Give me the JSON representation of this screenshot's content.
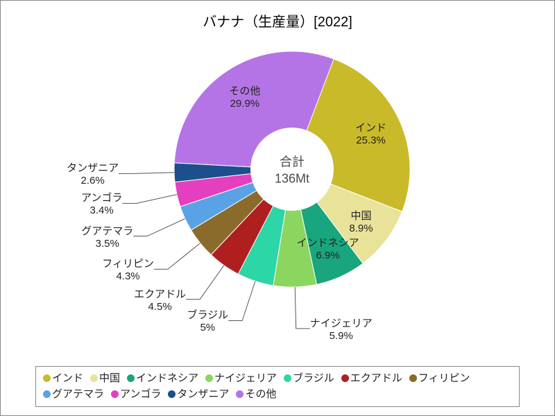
{
  "title": "バナナ（生産量）[2022]",
  "center": {
    "label": "合計",
    "value": "136Mt"
  },
  "chart": {
    "type": "pie",
    "inner_radius_ratio": 0.35,
    "start_angle_deg": -70,
    "direction": "clockwise",
    "background_color": "#ffffff",
    "border_color": "#888888",
    "title_fontsize": 20,
    "label_fontsize": 15,
    "legend_fontsize": 15
  },
  "slices": [
    {
      "name": "インド",
      "pct": 25.3,
      "color": "#c9ba29",
      "label": "インド",
      "pct_text": "25.3%"
    },
    {
      "name": "中国",
      "pct": 8.9,
      "color": "#e9e39a",
      "label": "中国",
      "pct_text": "8.9%"
    },
    {
      "name": "インドネシア",
      "pct": 6.9,
      "color": "#19a57d",
      "label": "インドネシア",
      "pct_text": "6.9%"
    },
    {
      "name": "ナイジェリア",
      "pct": 5.9,
      "color": "#8bd65f",
      "label": "ナイジェリア",
      "pct_text": "5.9%"
    },
    {
      "name": "ブラジル",
      "pct": 5.0,
      "color": "#2cd6a6",
      "label": "ブラジル",
      "pct_text": "5%"
    },
    {
      "name": "エクアドル",
      "pct": 4.5,
      "color": "#b01f1f",
      "label": "エクアドル",
      "pct_text": "4.5%"
    },
    {
      "name": "フィリピン",
      "pct": 4.3,
      "color": "#8a6b2b",
      "label": "フィリピン",
      "pct_text": "4.3%"
    },
    {
      "name": "グアテマラ",
      "pct": 3.5,
      "color": "#5aa2e6",
      "label": "グアテマラ",
      "pct_text": "3.5%"
    },
    {
      "name": "アンゴラ",
      "pct": 3.4,
      "color": "#e33fbf",
      "label": "アンゴラ",
      "pct_text": "3.4%"
    },
    {
      "name": "タンザニア",
      "pct": 2.6,
      "color": "#1c4f8b",
      "label": "タンザニア",
      "pct_text": "2.6%"
    },
    {
      "name": "その他",
      "pct": 29.9,
      "color": "#b574e6",
      "label": "その他",
      "pct_text": "29.9%"
    }
  ],
  "legend_order": [
    "インド",
    "中国",
    "インドネシア",
    "ナイジェリア",
    "ブラジル",
    "エクアドル",
    "フィリピン",
    "グアテマラ",
    "アンゴラ",
    "タンザニア",
    "その他"
  ]
}
